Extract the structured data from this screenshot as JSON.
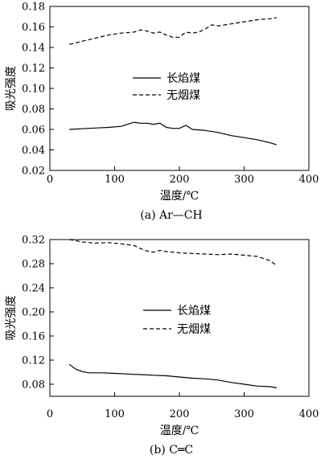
{
  "chart_data": [
    {
      "type": "line",
      "caption": "(a)  Ar—CH",
      "xlabel": "温度/℃",
      "ylabel": "吸光强度",
      "xlim": [
        0,
        400
      ],
      "ylim": [
        0.02,
        0.18
      ],
      "xticks": [
        0,
        100,
        200,
        300,
        400
      ],
      "yticks": [
        0.02,
        0.04,
        0.06,
        0.08,
        0.1,
        0.12,
        0.14,
        0.16,
        0.18
      ],
      "ytick_labels": [
        "0.02",
        "0.04",
        "0.06",
        "0.08",
        "0.10",
        "0.12",
        "0.14",
        "0.16",
        "0.18"
      ],
      "legend_position": "center",
      "grid": false,
      "series": [
        {
          "name": "长焰煤",
          "style": "solid",
          "points": [
            [
              30,
              0.06
            ],
            [
              60,
              0.061
            ],
            [
              90,
              0.062
            ],
            [
              110,
              0.063
            ],
            [
              120,
              0.065
            ],
            [
              130,
              0.067
            ],
            [
              140,
              0.066
            ],
            [
              150,
              0.066
            ],
            [
              160,
              0.065
            ],
            [
              170,
              0.066
            ],
            [
              180,
              0.062
            ],
            [
              190,
              0.061
            ],
            [
              200,
              0.061
            ],
            [
              210,
              0.064
            ],
            [
              220,
              0.06
            ],
            [
              240,
              0.059
            ],
            [
              260,
              0.057
            ],
            [
              280,
              0.054
            ],
            [
              300,
              0.052
            ],
            [
              320,
              0.05
            ],
            [
              340,
              0.047
            ],
            [
              350,
              0.045
            ]
          ]
        },
        {
          "name": "无烟煤",
          "style": "dashed",
          "points": [
            [
              30,
              0.143
            ],
            [
              50,
              0.146
            ],
            [
              70,
              0.149
            ],
            [
              90,
              0.152
            ],
            [
              110,
              0.154
            ],
            [
              130,
              0.155
            ],
            [
              140,
              0.157
            ],
            [
              150,
              0.156
            ],
            [
              160,
              0.154
            ],
            [
              170,
              0.155
            ],
            [
              180,
              0.152
            ],
            [
              190,
              0.15
            ],
            [
              200,
              0.15
            ],
            [
              210,
              0.155
            ],
            [
              220,
              0.154
            ],
            [
              230,
              0.155
            ],
            [
              240,
              0.158
            ],
            [
              250,
              0.162
            ],
            [
              260,
              0.161
            ],
            [
              280,
              0.163
            ],
            [
              300,
              0.165
            ],
            [
              320,
              0.167
            ],
            [
              340,
              0.168
            ],
            [
              350,
              0.169
            ]
          ]
        }
      ]
    },
    {
      "type": "line",
      "caption": "(b)  C═C",
      "xlabel": "温度/℃",
      "ylabel": "吸光强度",
      "xlim": [
        0,
        400
      ],
      "ylim": [
        0.06,
        0.32
      ],
      "xticks": [
        0,
        100,
        200,
        300,
        400
      ],
      "yticks": [
        0.08,
        0.12,
        0.16,
        0.2,
        0.24,
        0.28,
        0.32
      ],
      "ytick_labels": [
        "0.08",
        "0.12",
        "0.16",
        "0.20",
        "0.24",
        "0.28",
        "0.32"
      ],
      "legend_position": "center",
      "grid": false,
      "series": [
        {
          "name": "长焰煤",
          "style": "solid",
          "points": [
            [
              30,
              0.113
            ],
            [
              40,
              0.105
            ],
            [
              50,
              0.101
            ],
            [
              60,
              0.099
            ],
            [
              80,
              0.099
            ],
            [
              100,
              0.098
            ],
            [
              120,
              0.097
            ],
            [
              140,
              0.096
            ],
            [
              160,
              0.095
            ],
            [
              180,
              0.094
            ],
            [
              200,
              0.092
            ],
            [
              220,
              0.09
            ],
            [
              240,
              0.089
            ],
            [
              260,
              0.087
            ],
            [
              280,
              0.083
            ],
            [
              300,
              0.08
            ],
            [
              320,
              0.077
            ],
            [
              340,
              0.076
            ],
            [
              350,
              0.074
            ]
          ]
        },
        {
          "name": "无烟煤",
          "style": "dashed",
          "points": [
            [
              30,
              0.32
            ],
            [
              50,
              0.316
            ],
            [
              70,
              0.314
            ],
            [
              90,
              0.315
            ],
            [
              110,
              0.313
            ],
            [
              130,
              0.31
            ],
            [
              140,
              0.305
            ],
            [
              150,
              0.301
            ],
            [
              160,
              0.299
            ],
            [
              170,
              0.302
            ],
            [
              180,
              0.3
            ],
            [
              200,
              0.298
            ],
            [
              220,
              0.297
            ],
            [
              240,
              0.296
            ],
            [
              260,
              0.295
            ],
            [
              280,
              0.296
            ],
            [
              300,
              0.294
            ],
            [
              320,
              0.292
            ],
            [
              340,
              0.285
            ],
            [
              350,
              0.277
            ]
          ]
        }
      ]
    }
  ]
}
